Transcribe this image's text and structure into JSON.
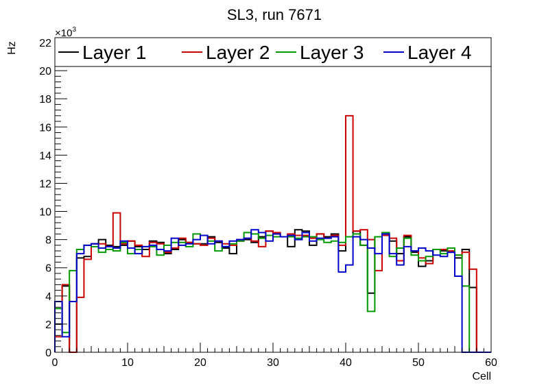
{
  "chart_data": {
    "type": "line",
    "step": true,
    "title": "SL3, run 7671",
    "xlabel": "Cell",
    "ylabel": "Hz",
    "y_exponent_label": "×10",
    "y_exponent_power": "3",
    "y_multiplier": 1000,
    "xlim": [
      0,
      60
    ],
    "ylim": [
      0,
      22
    ],
    "x_ticks": [
      0,
      10,
      20,
      30,
      40,
      50,
      60
    ],
    "y_ticks": [
      0,
      2,
      4,
      6,
      8,
      10,
      12,
      14,
      16,
      18,
      20,
      22
    ],
    "x_tick_labels": [
      "0",
      "10",
      "20",
      "30",
      "40",
      "50",
      "60"
    ],
    "y_tick_labels": [
      "0",
      "2",
      "4",
      "6",
      "8",
      "10",
      "12",
      "14",
      "16",
      "18",
      "20",
      "22"
    ],
    "grid": false,
    "legend_position": "top",
    "bin_edges_start": 0,
    "bin_width": 1,
    "series": [
      {
        "name": "Layer 1",
        "color": "#000000",
        "values": [
          2.0,
          4.7,
          0.0,
          6.7,
          6.8,
          7.7,
          8.0,
          7.6,
          7.5,
          7.6,
          7.9,
          7.5,
          7.3,
          7.9,
          7.8,
          7.0,
          7.3,
          8.0,
          7.8,
          7.7,
          7.7,
          8.2,
          7.8,
          7.4,
          7.0,
          8.0,
          8.0,
          7.8,
          8.2,
          8.6,
          8.4,
          8.2,
          7.5,
          8.7,
          8.6,
          7.6,
          8.4,
          8.2,
          8.4,
          7.2,
          8.2,
          8.6,
          7.6,
          4.2,
          8.2,
          8.3,
          7.9,
          7.0,
          8.2,
          7.1,
          6.1,
          6.5,
          7.3,
          7.2,
          7.1,
          6.7,
          7.3,
          4.6,
          0.0,
          0.0
        ]
      },
      {
        "name": "Layer 2",
        "color": "#cc0000",
        "values": [
          1.1,
          4.8,
          0.0,
          3.9,
          6.6,
          7.7,
          7.7,
          7.5,
          9.9,
          7.7,
          7.9,
          7.6,
          6.8,
          7.8,
          7.7,
          7.1,
          7.4,
          8.1,
          7.8,
          7.7,
          7.6,
          8.1,
          7.9,
          7.7,
          7.6,
          7.9,
          8.1,
          7.9,
          7.5,
          8.6,
          8.5,
          8.2,
          8.4,
          8.3,
          8.3,
          8.1,
          8.4,
          8.1,
          8.3,
          7.6,
          16.8,
          8.6,
          8.7,
          8.0,
          5.8,
          8.3,
          8.1,
          6.5,
          8.3,
          7.2,
          6.7,
          6.3,
          7.3,
          7.3,
          7.2,
          6.9,
          7.1,
          5.9,
          0.0,
          0.0
        ]
      },
      {
        "name": "Layer 3",
        "color": "#009900",
        "values": [
          3.1,
          1.4,
          5.8,
          7.3,
          7.6,
          7.5,
          7.1,
          7.3,
          7.2,
          7.8,
          7.0,
          7.3,
          7.5,
          7.5,
          6.9,
          7.6,
          7.8,
          7.8,
          7.5,
          8.4,
          8.3,
          7.9,
          7.2,
          7.5,
          7.7,
          7.9,
          8.5,
          8.4,
          8.1,
          8.3,
          8.2,
          8.2,
          8.2,
          8.1,
          8.2,
          8.2,
          8.0,
          7.8,
          7.9,
          7.8,
          8.2,
          8.4,
          7.6,
          2.9,
          8.2,
          8.5,
          6.8,
          7.4,
          8.1,
          6.9,
          6.5,
          6.8,
          7.3,
          7.0,
          7.4,
          6.9,
          4.7,
          0.0,
          0.0,
          0.0
        ]
      },
      {
        "name": "Layer 4",
        "color": "#0000cc",
        "values": [
          3.6,
          1.1,
          3.6,
          7.0,
          7.6,
          7.7,
          7.4,
          7.5,
          7.4,
          7.9,
          7.4,
          7.0,
          7.5,
          7.6,
          7.3,
          7.2,
          8.1,
          7.6,
          7.7,
          8.0,
          8.3,
          7.7,
          7.9,
          7.5,
          7.9,
          8.0,
          8.1,
          8.7,
          8.5,
          7.9,
          8.4,
          8.2,
          8.3,
          8.0,
          8.5,
          7.9,
          8.1,
          8.1,
          8.2,
          5.7,
          6.2,
          8.2,
          8.0,
          7.4,
          7.0,
          8.4,
          7.0,
          6.2,
          7.5,
          7.2,
          7.4,
          7.2,
          6.9,
          6.8,
          7.1,
          5.4,
          0.0,
          0.0,
          0.0,
          0.0
        ]
      }
    ]
  }
}
